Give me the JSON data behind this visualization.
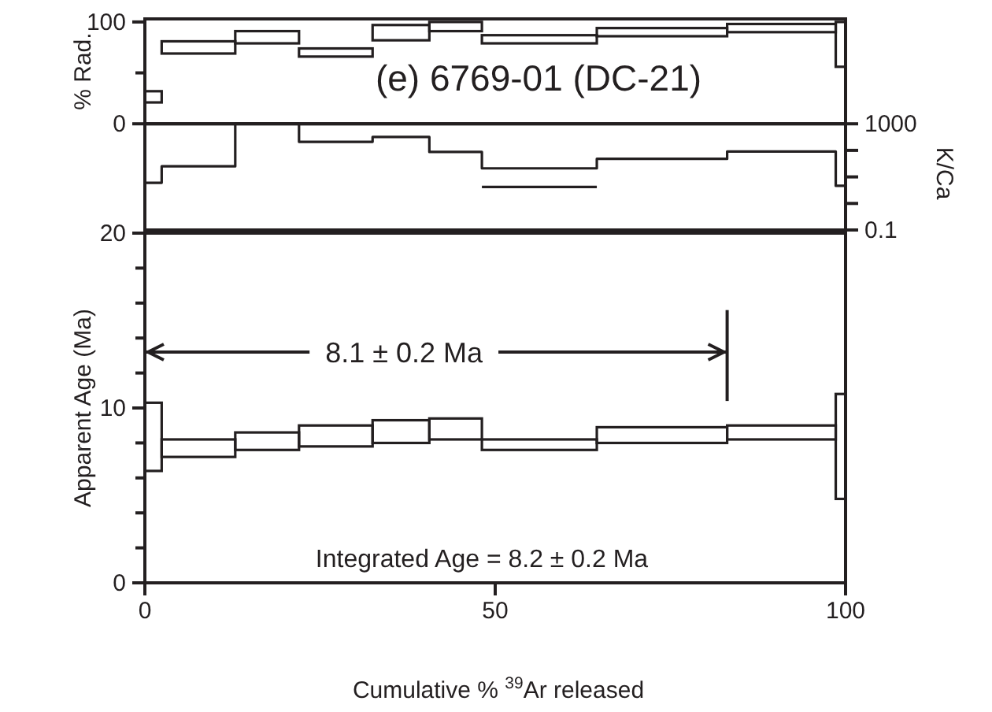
{
  "chart_data": [
    {
      "type": "histogram",
      "ylabel": "% Rad.",
      "bins": [
        0,
        2.4,
        12.9,
        22.0,
        32.5,
        40.6,
        48.1,
        64.5,
        83.1,
        98.6,
        100
      ],
      "base": [
        21,
        69,
        79,
        66,
        82,
        91,
        79,
        86,
        90,
        56
      ],
      "values": [
        11,
        12,
        12,
        8,
        15,
        9,
        8,
        8,
        8,
        44
      ],
      "color": "#231f20",
      "xlim": [
        0,
        100
      ],
      "ylim": [
        0,
        103
      ],
      "yticks": [
        0,
        {
          "value": 50,
          "label": null
        },
        100
      ],
      "tick_labels": "y",
      "annotations": [
        "(e) 6769-01 (DC-21)"
      ]
    },
    {
      "type": "step",
      "ylabel": "K/Ca",
      "log": "y",
      "xlim": [
        0,
        100
      ],
      "ylim": [
        0.1,
        1000
      ],
      "yticks": [
        0.1,
        {
          "value": 1,
          "label": null
        },
        {
          "value": 10,
          "label": null
        },
        {
          "value": 100,
          "label": null
        },
        1000
      ],
      "tick_labels": "y",
      "series": [
        {
          "color": "#231f20",
          "x": [
            0,
            2.4,
            12.9,
            22.0,
            32.5,
            40.6,
            48.1,
            64.5,
            83.1,
            98.6,
            100
          ],
          "values": [
            6,
            25,
            1000,
            210,
            320,
            87,
            21,
            48,
            91,
            4.6,
            4.6
          ]
        },
        {
          "type": "line",
          "color": "#231f20",
          "x": [
            48.1,
            64.5
          ],
          "values": [
            4.2,
            4.2
          ]
        }
      ]
    },
    {
      "type": "histogram",
      "ylabel": "Apparent Age (Ma)",
      "xlabel": "Cumulative % $^{39}$Ar released",
      "bins": [
        0,
        2.4,
        12.9,
        22.0,
        32.5,
        40.6,
        48.1,
        64.5,
        83.1,
        98.6,
        100
      ],
      "base": [
        6.4,
        7.2,
        7.6,
        7.8,
        8.0,
        8.2,
        7.6,
        8.0,
        8.2,
        4.8
      ],
      "values": [
        3.9,
        1.0,
        1.0,
        1.2,
        1.3,
        1.2,
        0.6,
        0.9,
        0.8,
        6.0
      ],
      "color": "#231f20",
      "xlim": [
        0,
        100
      ],
      "xticks": [
        0,
        50,
        100
      ],
      "ylim": [
        0,
        20
      ],
      "yticks": [
        0,
        {
          "value": 2,
          "label": null
        },
        {
          "value": 4,
          "label": null
        },
        {
          "value": 6,
          "label": null
        },
        {
          "value": 8,
          "label": null
        },
        10,
        {
          "value": 12,
          "label": null
        },
        {
          "value": 14,
          "label": null
        },
        {
          "value": 16,
          "label": null
        },
        {
          "value": 18,
          "label": null
        },
        20
      ],
      "ref_lines": [
        {
          "axis": "x",
          "value": 83.1
        }
      ],
      "annotations": [
        {
          "text": "8.1 ± 0.2 Ma",
          "x": 83.1,
          "y": 13.2
        },
        "Integrated Age = 8.2  ±  0.2 Ma"
      ]
    }
  ]
}
